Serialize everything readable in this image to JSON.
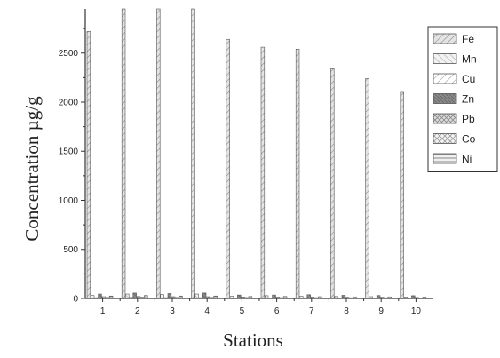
{
  "chart_data": {
    "type": "bar",
    "xlabel": "Stations",
    "ylabel": "Concentration µg/g",
    "categories": [
      "1",
      "2",
      "3",
      "4",
      "5",
      "6",
      "7",
      "8",
      "9",
      "10"
    ],
    "ylim": [
      0,
      2950
    ],
    "yticks": [
      0,
      500,
      1000,
      1500,
      2000,
      2500
    ],
    "legend_position": "top-right",
    "grid": false,
    "series": [
      {
        "name": "Fe",
        "values": [
          2720,
          2950,
          2950,
          2950,
          2640,
          2560,
          2540,
          2340,
          2240,
          2100
        ]
      },
      {
        "name": "Mn",
        "values": [
          30,
          45,
          40,
          45,
          22,
          28,
          22,
          20,
          18,
          14
        ]
      },
      {
        "name": "Cu",
        "values": [
          8,
          10,
          8,
          8,
          6,
          6,
          7,
          6,
          6,
          5
        ]
      },
      {
        "name": "Zn",
        "values": [
          45,
          55,
          50,
          55,
          35,
          35,
          38,
          32,
          30,
          28
        ]
      },
      {
        "name": "Pb",
        "values": [
          18,
          20,
          18,
          18,
          15,
          14,
          14,
          12,
          12,
          10
        ]
      },
      {
        "name": "Co",
        "values": [
          10,
          12,
          10,
          10,
          9,
          8,
          8,
          7,
          7,
          6
        ]
      },
      {
        "name": "Ni",
        "values": [
          25,
          30,
          25,
          25,
          20,
          20,
          18,
          16,
          16,
          14
        ]
      }
    ],
    "colors": {
      "axis": "#333333",
      "bar_stroke": "#555555",
      "pattern": "#777777",
      "background": "#ffffff"
    }
  }
}
